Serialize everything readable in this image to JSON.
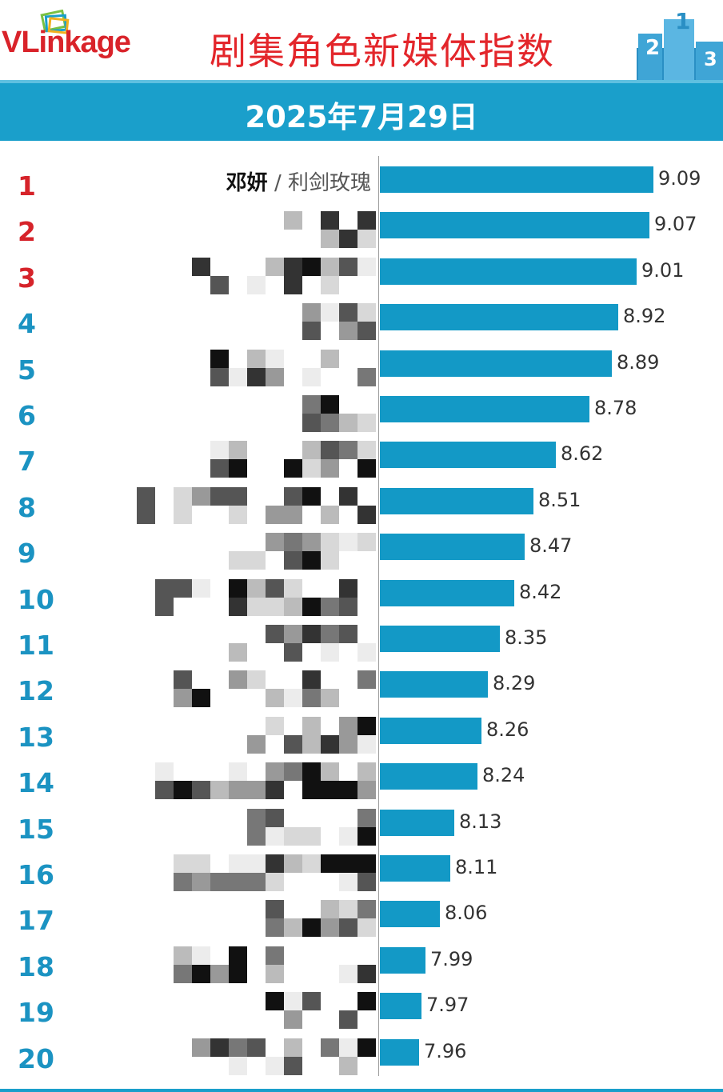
{
  "header": {
    "logo_text": "VLinkage",
    "title": "剧集角色新媒体指数",
    "podium_icon": "podium-icon"
  },
  "date_band": {
    "date": "2025年7月29日"
  },
  "colors": {
    "bar": "#1399c6",
    "band": "#1a9fcb",
    "top_rank": "#d6232a",
    "rank": "#1b93c2",
    "title": "#e3262b"
  },
  "chart_data": {
    "type": "bar",
    "orientation": "horizontal",
    "title": "剧集角色新媒体指数",
    "categories": [
      "1",
      "2",
      "3",
      "4",
      "5",
      "6",
      "7",
      "8",
      "9",
      "10",
      "11",
      "12",
      "13",
      "14",
      "15",
      "16",
      "17",
      "18",
      "19",
      "20"
    ],
    "first_label": {
      "name": "邓妍",
      "separator": " / ",
      "drama": "利剑玫瑰"
    },
    "values": [
      9.09,
      9.07,
      9.01,
      8.92,
      8.89,
      8.78,
      8.62,
      8.51,
      8.47,
      8.42,
      8.35,
      8.29,
      8.26,
      8.24,
      8.13,
      8.11,
      8.06,
      7.99,
      7.97,
      7.96
    ],
    "value_labels": [
      "9.09",
      "9.07",
      "9.01",
      "8.92",
      "8.89",
      "8.78",
      "8.62",
      "8.51",
      "8.47",
      "8.42",
      "8.35",
      "8.29",
      "8.26",
      "8.24",
      "8.13",
      "8.11",
      "8.06",
      "7.99",
      "7.97",
      "7.96"
    ],
    "ranks": [
      "1",
      "2",
      "3",
      "4",
      "5",
      "6",
      "7",
      "8",
      "9",
      "10",
      "11",
      "12",
      "13",
      "14",
      "15",
      "16",
      "17",
      "18",
      "19",
      "20"
    ],
    "top_ranks_highlighted": 3,
    "grid": false,
    "legend": "none"
  }
}
